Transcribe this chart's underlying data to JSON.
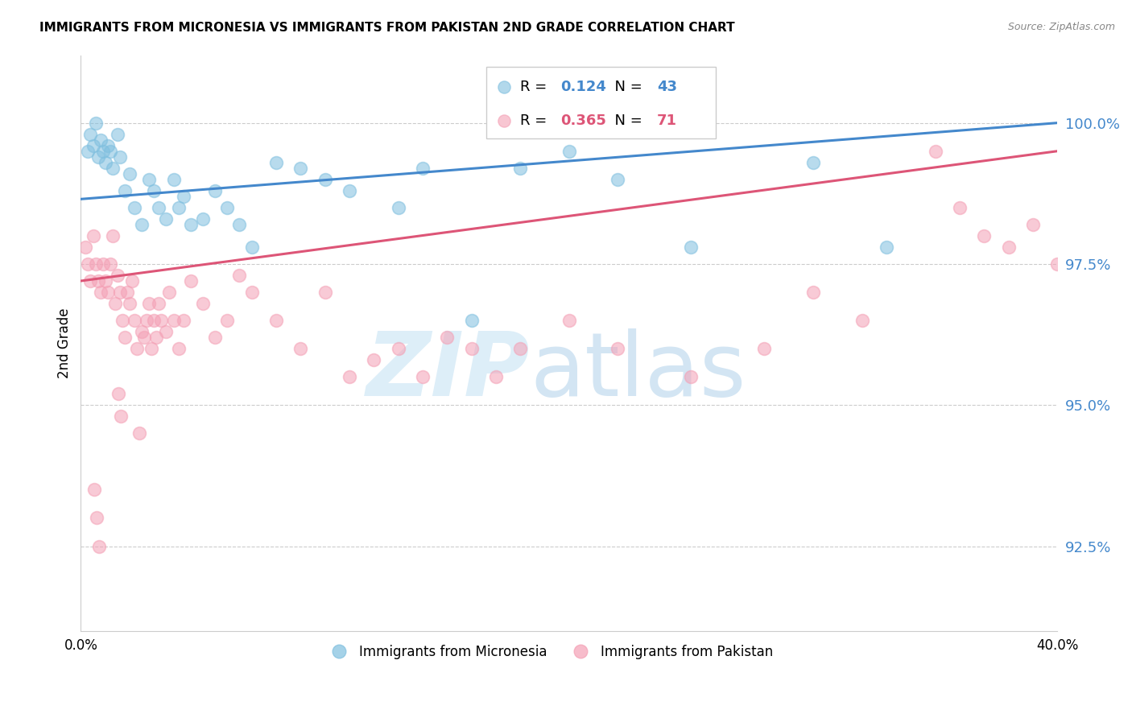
{
  "title": "IMMIGRANTS FROM MICRONESIA VS IMMIGRANTS FROM PAKISTAN 2ND GRADE CORRELATION CHART",
  "source": "Source: ZipAtlas.com",
  "ylabel": "2nd Grade",
  "ytick_values": [
    92.5,
    95.0,
    97.5,
    100.0
  ],
  "xlim": [
    0.0,
    40.0
  ],
  "ylim": [
    91.0,
    101.2
  ],
  "blue_R": 0.124,
  "blue_N": 43,
  "pink_R": 0.365,
  "pink_N": 71,
  "blue_color": "#7fbfdf",
  "pink_color": "#f4a0b5",
  "blue_line_color": "#4488cc",
  "pink_line_color": "#dd5577",
  "legend_label_blue": "Immigrants from Micronesia",
  "legend_label_pink": "Immigrants from Pakistan",
  "blue_scatter_x": [
    0.3,
    0.4,
    0.5,
    0.6,
    0.7,
    0.8,
    0.9,
    1.0,
    1.1,
    1.2,
    1.3,
    1.5,
    1.6,
    1.8,
    2.0,
    2.2,
    2.5,
    2.8,
    3.0,
    3.2,
    3.5,
    3.8,
    4.0,
    4.2,
    4.5,
    5.0,
    5.5,
    6.0,
    6.5,
    7.0,
    8.0,
    9.0,
    10.0,
    11.0,
    13.0,
    14.0,
    16.0,
    18.0,
    20.0,
    22.0,
    25.0,
    30.0,
    33.0
  ],
  "blue_scatter_y": [
    99.5,
    99.8,
    99.6,
    100.0,
    99.4,
    99.7,
    99.5,
    99.3,
    99.6,
    99.5,
    99.2,
    99.8,
    99.4,
    98.8,
    99.1,
    98.5,
    98.2,
    99.0,
    98.8,
    98.5,
    98.3,
    99.0,
    98.5,
    98.7,
    98.2,
    98.3,
    98.8,
    98.5,
    98.2,
    97.8,
    99.3,
    99.2,
    99.0,
    98.8,
    98.5,
    99.2,
    96.5,
    99.2,
    99.5,
    99.0,
    97.8,
    99.3,
    97.8
  ],
  "pink_scatter_x": [
    0.2,
    0.3,
    0.4,
    0.5,
    0.6,
    0.7,
    0.8,
    0.9,
    1.0,
    1.1,
    1.2,
    1.3,
    1.4,
    1.5,
    1.6,
    1.7,
    1.8,
    1.9,
    2.0,
    2.1,
    2.2,
    2.3,
    2.5,
    2.6,
    2.7,
    2.8,
    2.9,
    3.0,
    3.1,
    3.2,
    3.3,
    3.5,
    3.6,
    3.8,
    4.0,
    4.2,
    4.5,
    5.0,
    5.5,
    6.0,
    6.5,
    7.0,
    8.0,
    9.0,
    10.0,
    11.0,
    12.0,
    13.0,
    14.0,
    15.0,
    16.0,
    17.0,
    18.0,
    20.0,
    22.0,
    25.0,
    28.0,
    30.0,
    32.0,
    35.0,
    36.0,
    37.0,
    38.0,
    39.0,
    40.0,
    2.4,
    1.55,
    1.65,
    0.55,
    0.65,
    0.75
  ],
  "pink_scatter_y": [
    97.8,
    97.5,
    97.2,
    98.0,
    97.5,
    97.2,
    97.0,
    97.5,
    97.2,
    97.0,
    97.5,
    98.0,
    96.8,
    97.3,
    97.0,
    96.5,
    96.2,
    97.0,
    96.8,
    97.2,
    96.5,
    96.0,
    96.3,
    96.2,
    96.5,
    96.8,
    96.0,
    96.5,
    96.2,
    96.8,
    96.5,
    96.3,
    97.0,
    96.5,
    96.0,
    96.5,
    97.2,
    96.8,
    96.2,
    96.5,
    97.3,
    97.0,
    96.5,
    96.0,
    97.0,
    95.5,
    95.8,
    96.0,
    95.5,
    96.2,
    96.0,
    95.5,
    96.0,
    96.5,
    96.0,
    95.5,
    96.0,
    97.0,
    96.5,
    99.5,
    98.5,
    98.0,
    97.8,
    98.2,
    97.5,
    94.5,
    95.2,
    94.8,
    93.5,
    93.0,
    92.5
  ],
  "blue_line_x0": 0.0,
  "blue_line_y0": 98.65,
  "blue_line_x1": 40.0,
  "blue_line_y1": 100.0,
  "pink_line_x0": 0.0,
  "pink_line_y0": 97.2,
  "pink_line_x1": 40.0,
  "pink_line_y1": 99.5
}
